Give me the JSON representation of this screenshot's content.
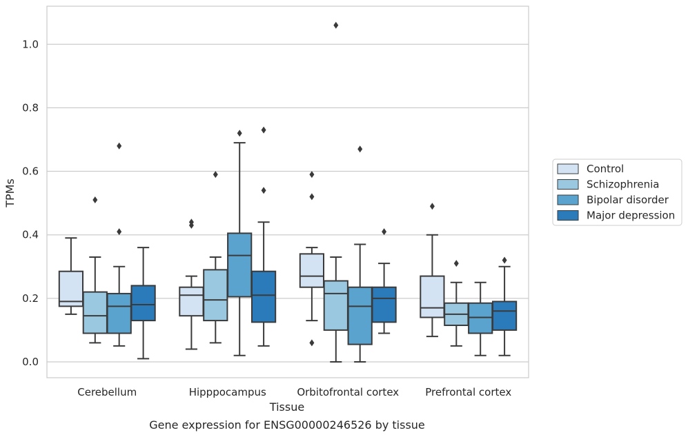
{
  "chart_data": {
    "type": "boxplot",
    "title": "Gene expression for ENSG00000246526 by tissue",
    "xlabel": "Tissue",
    "ylabel": "TPMs",
    "ylim": [
      -0.05,
      1.12
    ],
    "yticks": [
      0.0,
      0.2,
      0.4,
      0.6,
      0.8,
      1.0
    ],
    "ytick_labels": [
      "0.0",
      "0.2",
      "0.4",
      "0.6",
      "0.8",
      "1.0"
    ],
    "grid": "horizontal",
    "legend_position": "right",
    "categories": [
      "Cerebellum",
      "Hipppocampus",
      "Orbitofrontal cortex",
      "Prefrontal cortex"
    ],
    "series": [
      {
        "name": "Control",
        "color": "#d3e3f3",
        "boxes": [
          {
            "whislo": 0.15,
            "q1": 0.175,
            "med": 0.19,
            "q3": 0.285,
            "whishi": 0.39,
            "fliers": []
          },
          {
            "whislo": 0.04,
            "q1": 0.145,
            "med": 0.21,
            "q3": 0.235,
            "whishi": 0.27,
            "fliers": [
              0.43,
              0.44
            ]
          },
          {
            "whislo": 0.13,
            "q1": 0.235,
            "med": 0.27,
            "q3": 0.34,
            "whishi": 0.36,
            "fliers": [
              0.06,
              0.52,
              0.59
            ]
          },
          {
            "whislo": 0.08,
            "q1": 0.14,
            "med": 0.17,
            "q3": 0.27,
            "whishi": 0.4,
            "fliers": [
              0.49
            ]
          }
        ]
      },
      {
        "name": "Schizophrenia",
        "color": "#9ac8e0",
        "boxes": [
          {
            "whislo": 0.06,
            "q1": 0.09,
            "med": 0.145,
            "q3": 0.22,
            "whishi": 0.33,
            "fliers": [
              0.51
            ]
          },
          {
            "whislo": 0.06,
            "q1": 0.13,
            "med": 0.195,
            "q3": 0.29,
            "whishi": 0.33,
            "fliers": [
              0.59
            ]
          },
          {
            "whislo": 0.0,
            "q1": 0.1,
            "med": 0.215,
            "q3": 0.255,
            "whishi": 0.33,
            "fliers": [
              1.06
            ]
          },
          {
            "whislo": 0.05,
            "q1": 0.115,
            "med": 0.15,
            "q3": 0.185,
            "whishi": 0.25,
            "fliers": [
              0.31
            ]
          }
        ]
      },
      {
        "name": "Bipolar disorder",
        "color": "#5ba3cf",
        "boxes": [
          {
            "whislo": 0.05,
            "q1": 0.09,
            "med": 0.175,
            "q3": 0.215,
            "whishi": 0.3,
            "fliers": [
              0.41,
              0.68
            ]
          },
          {
            "whislo": 0.02,
            "q1": 0.205,
            "med": 0.335,
            "q3": 0.405,
            "whishi": 0.69,
            "fliers": [
              0.72
            ]
          },
          {
            "whislo": 0.0,
            "q1": 0.055,
            "med": 0.175,
            "q3": 0.235,
            "whishi": 0.37,
            "fliers": [
              0.67
            ]
          },
          {
            "whislo": 0.02,
            "q1": 0.09,
            "med": 0.14,
            "q3": 0.185,
            "whishi": 0.25,
            "fliers": []
          }
        ]
      },
      {
        "name": "Major depression",
        "color": "#2b7bba",
        "boxes": [
          {
            "whislo": 0.01,
            "q1": 0.13,
            "med": 0.18,
            "q3": 0.24,
            "whishi": 0.36,
            "fliers": []
          },
          {
            "whislo": 0.05,
            "q1": 0.125,
            "med": 0.21,
            "q3": 0.285,
            "whishi": 0.44,
            "fliers": [
              0.54,
              0.73
            ]
          },
          {
            "whislo": 0.09,
            "q1": 0.125,
            "med": 0.2,
            "q3": 0.235,
            "whishi": 0.31,
            "fliers": [
              0.41
            ]
          },
          {
            "whislo": 0.02,
            "q1": 0.1,
            "med": 0.16,
            "q3": 0.19,
            "whishi": 0.3,
            "fliers": [
              0.32
            ]
          }
        ]
      }
    ]
  }
}
